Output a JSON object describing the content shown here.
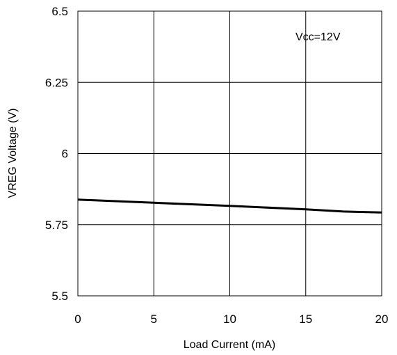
{
  "chart_data": {
    "type": "line",
    "xlabel": "Load Current (mA)",
    "ylabel": "VREG Voltage (V)",
    "xlim": [
      0,
      20
    ],
    "ylim": [
      5.5,
      6.5
    ],
    "x_ticks": [
      "0",
      "5",
      "10",
      "15",
      "20"
    ],
    "y_ticks": [
      "5.5",
      "5.75",
      "6",
      "6.25",
      "6.5"
    ],
    "grid": true,
    "annotation": "Vcc=12V",
    "series": [
      {
        "x": [
          0,
          5,
          10,
          15,
          17.5,
          20
        ],
        "y": [
          5.838,
          5.827,
          5.816,
          5.804,
          5.796,
          5.793
        ],
        "color": "#000000"
      }
    ]
  }
}
